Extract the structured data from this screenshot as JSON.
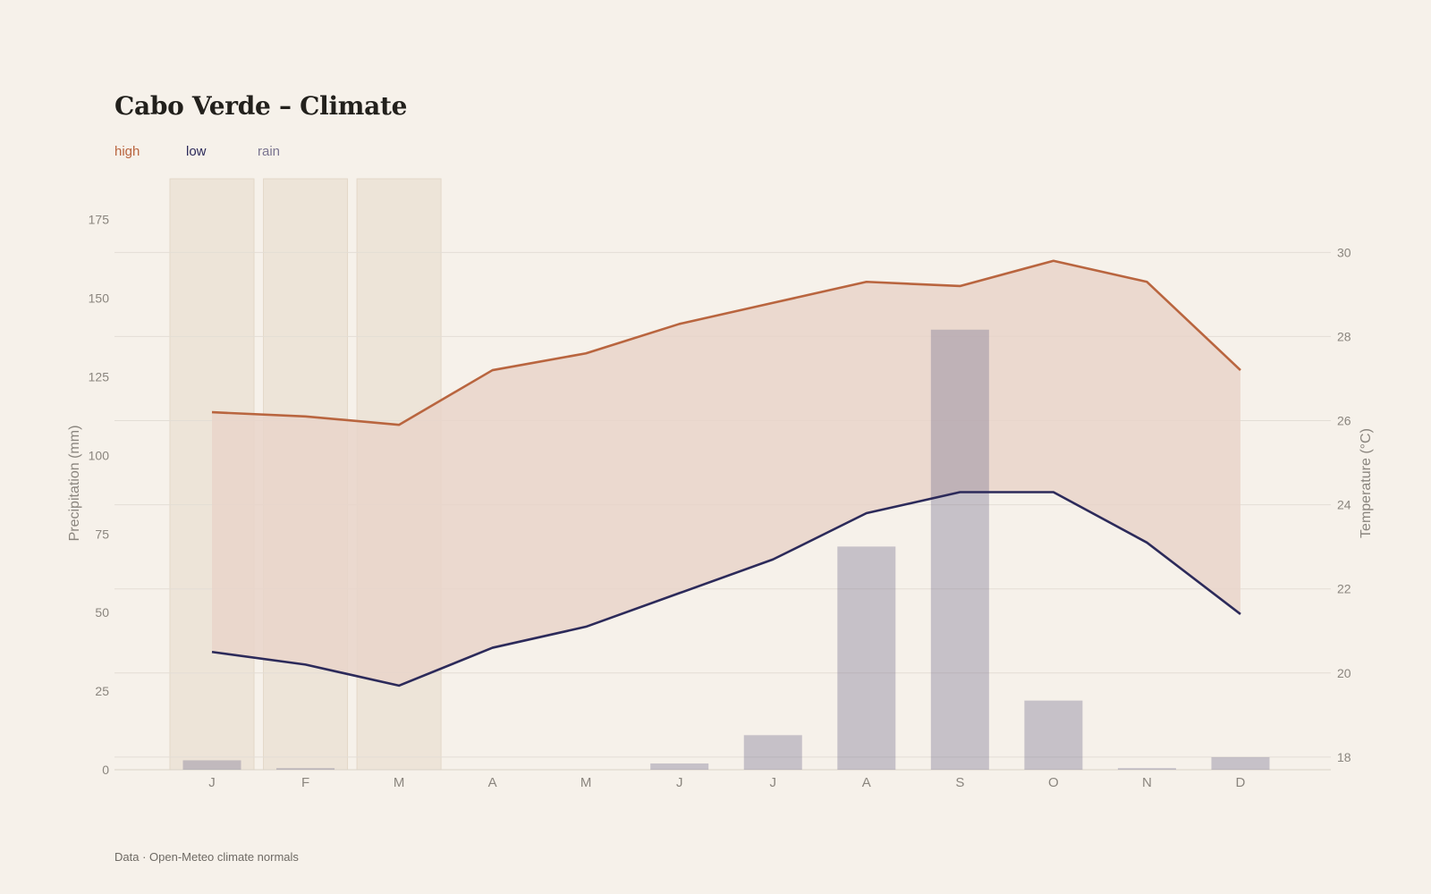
{
  "title": "Cabo Verde – Climate",
  "legend": {
    "high": "high",
    "low": "low",
    "rain": "rain"
  },
  "source": "Data · Open-Meteo climate normals",
  "colors": {
    "high": "#b9653f",
    "low": "#2c2a5a",
    "rain": "#7a7490",
    "band": "#e9d5ca",
    "highlight": "#ede4d8",
    "grid": "#e3ddd5",
    "tick": "#8a857e"
  },
  "chart_data": {
    "type": "line",
    "title": "Cabo Verde – Climate",
    "categories": [
      "J",
      "F",
      "M",
      "A",
      "M",
      "J",
      "J",
      "A",
      "S",
      "O",
      "N",
      "D"
    ],
    "highlighted_months": [
      "J",
      "F",
      "M"
    ],
    "series": [
      {
        "name": "high",
        "axis": "right",
        "type": "line",
        "values": [
          26.2,
          26.1,
          25.9,
          27.2,
          27.6,
          28.3,
          28.8,
          29.3,
          29.2,
          29.8,
          29.3,
          27.2
        ]
      },
      {
        "name": "low",
        "axis": "right",
        "type": "line",
        "values": [
          20.5,
          20.2,
          19.7,
          20.6,
          21.1,
          21.9,
          22.7,
          23.8,
          24.3,
          24.3,
          23.1,
          21.4
        ]
      },
      {
        "name": "rain",
        "axis": "left",
        "type": "bar",
        "values": [
          3,
          0.5,
          0,
          0,
          0,
          2,
          11,
          71,
          140,
          22,
          0.5,
          4
        ]
      }
    ],
    "y_left": {
      "label": "Precipitation (mm)",
      "ticks": [
        0,
        25,
        50,
        75,
        100,
        125,
        150,
        175
      ],
      "range": [
        0,
        188
      ]
    },
    "y_right": {
      "label": "Temperature (°C)",
      "ticks": [
        18,
        20,
        22,
        24,
        26,
        28,
        30
      ],
      "range": [
        17.7,
        31.75
      ]
    },
    "grid": true
  }
}
